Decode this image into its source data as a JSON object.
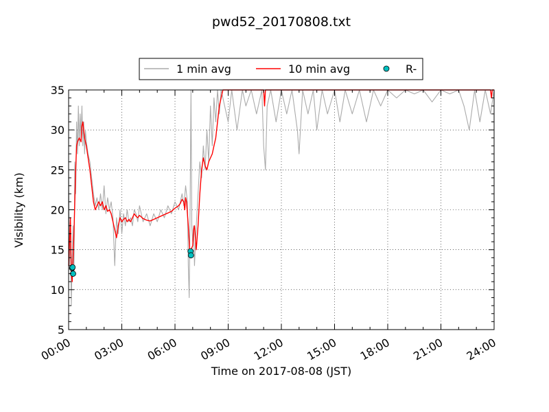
{
  "chart_data": {
    "type": "line",
    "title": "pwd52_20170808.txt",
    "xlabel": "Time on 2017-08-08 (JST)",
    "ylabel": "Visibility (km)",
    "xlim_hours": [
      0,
      24
    ],
    "ylim": [
      5,
      35
    ],
    "x_ticks": [
      "00:00",
      "03:00",
      "06:00",
      "09:00",
      "12:00",
      "15:00",
      "18:00",
      "21:00",
      "24:00"
    ],
    "y_ticks": [
      "5",
      "10",
      "15",
      "20",
      "25",
      "30",
      "35"
    ],
    "grid": true,
    "legend_placement": "top-center",
    "legend": [
      "1 min avg",
      "10 min avg",
      "R-"
    ],
    "series": [
      {
        "name": "1 min avg",
        "color": "#aaaaaa",
        "points": [
          [
            0.0,
            25.0
          ],
          [
            0.05,
            13.0
          ],
          [
            0.1,
            17.0
          ],
          [
            0.15,
            8.0
          ],
          [
            0.2,
            14.0
          ],
          [
            0.25,
            18.0
          ],
          [
            0.3,
            12.0
          ],
          [
            0.35,
            26.0
          ],
          [
            0.4,
            22.0
          ],
          [
            0.45,
            31.0
          ],
          [
            0.5,
            27.0
          ],
          [
            0.55,
            33.0
          ],
          [
            0.6,
            28.0
          ],
          [
            0.65,
            32.0
          ],
          [
            0.7,
            29.0
          ],
          [
            0.75,
            33.0
          ],
          [
            0.8,
            28.0
          ],
          [
            0.85,
            31.0
          ],
          [
            0.9,
            27.0
          ],
          [
            0.95,
            30.0
          ],
          [
            1.0,
            28.5
          ],
          [
            1.1,
            27.0
          ],
          [
            1.2,
            26.0
          ],
          [
            1.3,
            24.0
          ],
          [
            1.4,
            22.0
          ],
          [
            1.5,
            20.5
          ],
          [
            1.6,
            21.5
          ],
          [
            1.7,
            20.0
          ],
          [
            1.8,
            22.0
          ],
          [
            1.9,
            20.0
          ],
          [
            2.0,
            23.0
          ],
          [
            2.1,
            19.5
          ],
          [
            2.2,
            21.5
          ],
          [
            2.3,
            20.0
          ],
          [
            2.4,
            21.0
          ],
          [
            2.5,
            19.0
          ],
          [
            2.6,
            13.0
          ],
          [
            2.7,
            19.0
          ],
          [
            2.8,
            17.0
          ],
          [
            2.9,
            20.0
          ],
          [
            3.0,
            17.0
          ],
          [
            3.1,
            19.5
          ],
          [
            3.2,
            18.0
          ],
          [
            3.3,
            20.0
          ],
          [
            3.4,
            18.5
          ],
          [
            3.5,
            19.0
          ],
          [
            3.6,
            18.0
          ],
          [
            3.7,
            20.0
          ],
          [
            3.8,
            19.5
          ],
          [
            3.9,
            18.5
          ],
          [
            4.0,
            20.5
          ],
          [
            4.2,
            18.5
          ],
          [
            4.4,
            19.5
          ],
          [
            4.6,
            18.0
          ],
          [
            4.8,
            19.5
          ],
          [
            5.0,
            18.5
          ],
          [
            5.2,
            20.0
          ],
          [
            5.4,
            19.0
          ],
          [
            5.6,
            20.5
          ],
          [
            5.8,
            19.5
          ],
          [
            6.0,
            21.0
          ],
          [
            6.2,
            20.0
          ],
          [
            6.4,
            22.0
          ],
          [
            6.5,
            20.5
          ],
          [
            6.6,
            23.0
          ],
          [
            6.7,
            21.0
          ],
          [
            6.75,
            13.0
          ],
          [
            6.8,
            9.0
          ],
          [
            6.85,
            20.0
          ],
          [
            6.9,
            35.0
          ],
          [
            6.95,
            18.0
          ],
          [
            7.0,
            16.0
          ],
          [
            7.05,
            18.0
          ],
          [
            7.1,
            13.0
          ],
          [
            7.2,
            18.0
          ],
          [
            7.3,
            22.0
          ],
          [
            7.4,
            26.0
          ],
          [
            7.5,
            24.0
          ],
          [
            7.6,
            28.0
          ],
          [
            7.7,
            25.0
          ],
          [
            7.8,
            30.0
          ],
          [
            7.9,
            26.0
          ],
          [
            8.0,
            33.0
          ],
          [
            8.1,
            28.0
          ],
          [
            8.2,
            34.0
          ],
          [
            8.3,
            31.0
          ],
          [
            8.4,
            35.0
          ],
          [
            8.5,
            32.0
          ],
          [
            8.6,
            35.0
          ],
          [
            9.0,
            31.0
          ],
          [
            9.2,
            35.0
          ],
          [
            9.5,
            30.0
          ],
          [
            9.8,
            35.0
          ],
          [
            10.0,
            33.0
          ],
          [
            10.3,
            35.0
          ],
          [
            10.6,
            32.0
          ],
          [
            10.9,
            35.0
          ],
          [
            11.0,
            28.0
          ],
          [
            11.1,
            25.0
          ],
          [
            11.2,
            33.0
          ],
          [
            11.4,
            35.0
          ],
          [
            11.7,
            31.0
          ],
          [
            12.0,
            35.0
          ],
          [
            12.3,
            32.0
          ],
          [
            12.6,
            35.0
          ],
          [
            12.9,
            30.0
          ],
          [
            13.0,
            27.0
          ],
          [
            13.2,
            35.0
          ],
          [
            13.5,
            32.0
          ],
          [
            13.8,
            35.0
          ],
          [
            14.0,
            30.0
          ],
          [
            14.3,
            35.0
          ],
          [
            14.6,
            32.0
          ],
          [
            15.0,
            35.0
          ],
          [
            15.3,
            31.0
          ],
          [
            15.6,
            35.0
          ],
          [
            16.0,
            32.0
          ],
          [
            16.4,
            35.0
          ],
          [
            16.8,
            31.0
          ],
          [
            17.2,
            35.0
          ],
          [
            17.6,
            33.0
          ],
          [
            18.0,
            35.0
          ],
          [
            18.5,
            34.0
          ],
          [
            19.0,
            35.0
          ],
          [
            19.5,
            34.5
          ],
          [
            20.0,
            35.0
          ],
          [
            20.5,
            33.5
          ],
          [
            21.0,
            35.0
          ],
          [
            21.5,
            34.5
          ],
          [
            22.0,
            35.0
          ],
          [
            22.3,
            33.0
          ],
          [
            22.6,
            30.0
          ],
          [
            22.9,
            35.0
          ],
          [
            23.2,
            31.0
          ],
          [
            23.5,
            35.0
          ],
          [
            23.8,
            32.0
          ],
          [
            24.0,
            35.0
          ]
        ]
      },
      {
        "name": "10 min avg",
        "color": "#ff0000",
        "points": [
          [
            0.0,
            13.0
          ],
          [
            0.1,
            19.0
          ],
          [
            0.15,
            12.0
          ],
          [
            0.2,
            11.0
          ],
          [
            0.25,
            14.0
          ],
          [
            0.3,
            17.0
          ],
          [
            0.35,
            21.0
          ],
          [
            0.4,
            25.0
          ],
          [
            0.45,
            28.0
          ],
          [
            0.5,
            28.5
          ],
          [
            0.6,
            29.0
          ],
          [
            0.7,
            28.5
          ],
          [
            0.75,
            30.5
          ],
          [
            0.8,
            31.0
          ],
          [
            0.85,
            30.0
          ],
          [
            0.9,
            29.0
          ],
          [
            1.0,
            28.0
          ],
          [
            1.1,
            26.5
          ],
          [
            1.2,
            25.0
          ],
          [
            1.3,
            23.0
          ],
          [
            1.4,
            21.0
          ],
          [
            1.5,
            20.0
          ],
          [
            1.6,
            20.5
          ],
          [
            1.7,
            21.0
          ],
          [
            1.8,
            20.5
          ],
          [
            1.9,
            21.0
          ],
          [
            2.0,
            20.0
          ],
          [
            2.1,
            20.5
          ],
          [
            2.2,
            19.8
          ],
          [
            2.3,
            20.0
          ],
          [
            2.4,
            19.5
          ],
          [
            2.5,
            18.5
          ],
          [
            2.6,
            17.5
          ],
          [
            2.7,
            16.5
          ],
          [
            2.8,
            18.0
          ],
          [
            2.9,
            19.0
          ],
          [
            3.0,
            18.5
          ],
          [
            3.1,
            18.8
          ],
          [
            3.2,
            19.0
          ],
          [
            3.3,
            18.5
          ],
          [
            3.4,
            18.8
          ],
          [
            3.5,
            18.5
          ],
          [
            3.6,
            19.0
          ],
          [
            3.7,
            19.5
          ],
          [
            3.8,
            19.2
          ],
          [
            3.9,
            19.0
          ],
          [
            4.0,
            19.3
          ],
          [
            4.2,
            18.9
          ],
          [
            4.4,
            18.7
          ],
          [
            4.6,
            18.6
          ],
          [
            4.8,
            18.8
          ],
          [
            5.0,
            19.0
          ],
          [
            5.2,
            19.2
          ],
          [
            5.4,
            19.4
          ],
          [
            5.6,
            19.6
          ],
          [
            5.8,
            19.8
          ],
          [
            6.0,
            20.2
          ],
          [
            6.2,
            20.5
          ],
          [
            6.3,
            20.8
          ],
          [
            6.4,
            21.3
          ],
          [
            6.5,
            21.0
          ],
          [
            6.55,
            20.0
          ],
          [
            6.6,
            21.5
          ],
          [
            6.65,
            21.0
          ],
          [
            6.7,
            19.5
          ],
          [
            6.75,
            18.0
          ],
          [
            6.8,
            16.0
          ],
          [
            6.85,
            14.0
          ],
          [
            6.9,
            15.0
          ],
          [
            7.0,
            15.5
          ],
          [
            7.05,
            17.5
          ],
          [
            7.1,
            18.0
          ],
          [
            7.15,
            16.5
          ],
          [
            7.2,
            15.0
          ],
          [
            7.3,
            18.0
          ],
          [
            7.4,
            22.0
          ],
          [
            7.5,
            25.0
          ],
          [
            7.6,
            26.5
          ],
          [
            7.7,
            25.5
          ],
          [
            7.8,
            25.0
          ],
          [
            7.9,
            26.0
          ],
          [
            8.0,
            26.5
          ],
          [
            8.1,
            27.0
          ],
          [
            8.2,
            28.0
          ],
          [
            8.3,
            29.0
          ],
          [
            8.4,
            31.0
          ],
          [
            8.5,
            33.0
          ],
          [
            8.6,
            34.0
          ],
          [
            8.7,
            35.0
          ],
          [
            11.0,
            35.0
          ],
          [
            11.05,
            33.0
          ],
          [
            11.1,
            35.0
          ],
          [
            23.8,
            35.0
          ],
          [
            23.85,
            34.0
          ],
          [
            23.9,
            35.0
          ],
          [
            24.0,
            35.0
          ]
        ]
      },
      {
        "name": "R-",
        "color": "#00bfbf",
        "points": [
          [
            0.2,
            12.7
          ],
          [
            0.22,
            12.8
          ],
          [
            0.25,
            12.0
          ],
          [
            6.88,
            14.8
          ],
          [
            6.9,
            14.3
          ]
        ]
      }
    ]
  }
}
